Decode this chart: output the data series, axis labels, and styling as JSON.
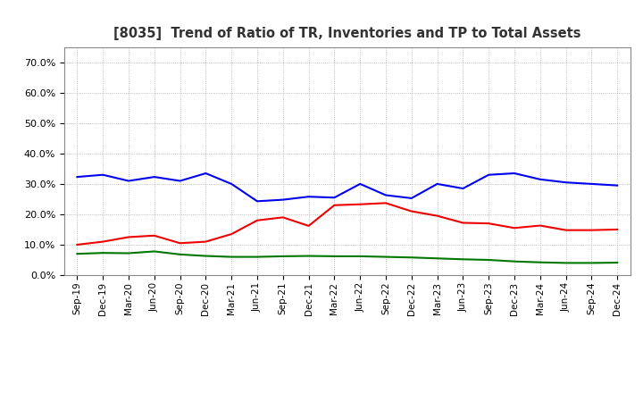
{
  "title": "[8035]  Trend of Ratio of TR, Inventories and TP to Total Assets",
  "x_labels": [
    "Sep-19",
    "Dec-19",
    "Mar-20",
    "Jun-20",
    "Sep-20",
    "Dec-20",
    "Mar-21",
    "Jun-21",
    "Sep-21",
    "Dec-21",
    "Mar-22",
    "Jun-22",
    "Sep-22",
    "Dec-22",
    "Mar-23",
    "Jun-23",
    "Sep-23",
    "Dec-23",
    "Mar-24",
    "Jun-24",
    "Sep-24",
    "Dec-24"
  ],
  "trade_receivables": [
    0.1,
    0.11,
    0.125,
    0.13,
    0.105,
    0.11,
    0.135,
    0.18,
    0.19,
    0.162,
    0.23,
    0.233,
    0.237,
    0.21,
    0.195,
    0.172,
    0.17,
    0.155,
    0.163,
    0.148,
    0.148,
    0.15
  ],
  "inventories": [
    0.323,
    0.33,
    0.31,
    0.323,
    0.31,
    0.335,
    0.3,
    0.243,
    0.248,
    0.258,
    0.255,
    0.3,
    0.263,
    0.253,
    0.3,
    0.285,
    0.33,
    0.335,
    0.315,
    0.305,
    0.3,
    0.295
  ],
  "trade_payables": [
    0.07,
    0.073,
    0.072,
    0.078,
    0.068,
    0.063,
    0.06,
    0.06,
    0.062,
    0.063,
    0.062,
    0.062,
    0.06,
    0.058,
    0.055,
    0.052,
    0.05,
    0.045,
    0.042,
    0.04,
    0.04,
    0.041
  ],
  "colors": {
    "trade_receivables": "#EE0000",
    "inventories": "#0000EE",
    "trade_payables": "#007700"
  },
  "ylim": [
    0.0,
    0.75
  ],
  "yticks": [
    0.0,
    0.1,
    0.2,
    0.3,
    0.4,
    0.5,
    0.6,
    0.7
  ],
  "background_color": "#FFFFFF",
  "grid_color": "#AAAAAA",
  "title_color": "#333333"
}
